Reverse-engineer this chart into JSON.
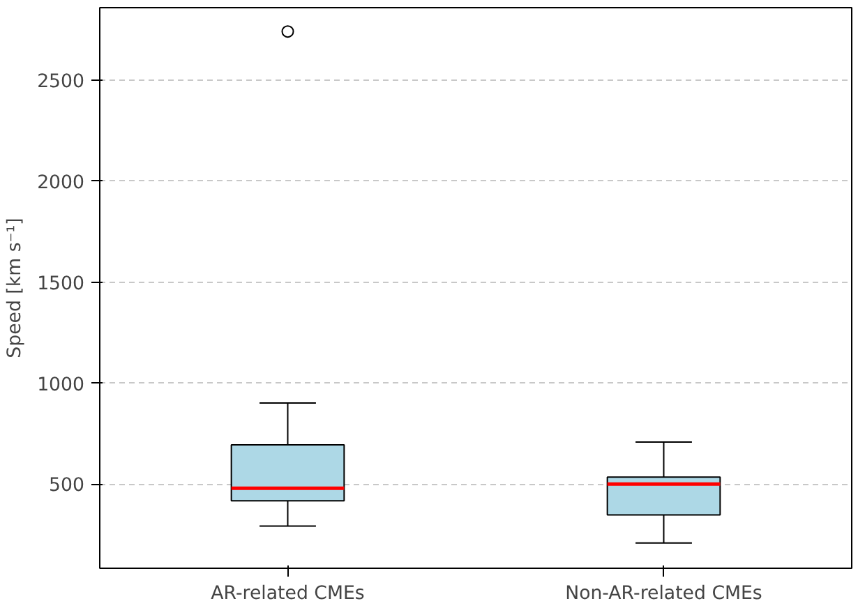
{
  "chart_data": {
    "type": "box",
    "ylabel": "Speed [km s⁻¹]",
    "categories": [
      "AR-related CMEs",
      "Non-AR-related CMEs"
    ],
    "series": [
      {
        "color": "#add8e6",
        "boxes": [
          {
            "low": 292,
            "q1": 417,
            "median": 479,
            "q3": 694,
            "high": 902,
            "outliers": [
              2742
            ]
          },
          {
            "low": 208,
            "q1": 347,
            "median": 500,
            "q3": 535,
            "high": 708
          }
        ]
      }
    ],
    "ylim": [
      83,
      2860
    ],
    "yticks": [
      500,
      1000,
      1500,
      2000,
      2500
    ],
    "grid": "y"
  }
}
